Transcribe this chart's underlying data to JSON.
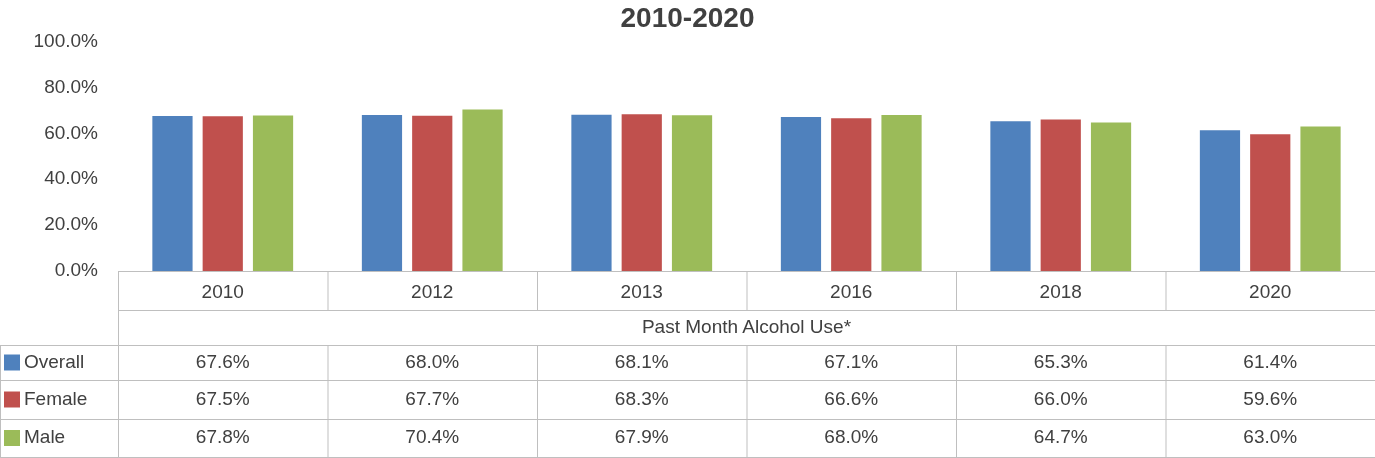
{
  "chart_data": {
    "type": "bar",
    "title": "2010-2020",
    "xlabel": "Past Month Alcohol Use*",
    "categories": [
      "2010",
      "2012",
      "2013",
      "2016",
      "2018",
      "2020"
    ],
    "series": [
      {
        "name": "Overall",
        "color": "#4f81bd",
        "values": [
          67.6,
          68.0,
          68.1,
          67.1,
          65.3,
          61.4
        ],
        "value_labels": [
          "67.6%",
          "68.0%",
          "68.1%",
          "67.1%",
          "65.3%",
          "61.4%"
        ]
      },
      {
        "name": "Female",
        "color": "#c0504d",
        "values": [
          67.5,
          67.7,
          68.3,
          66.6,
          66.0,
          59.6
        ],
        "value_labels": [
          "67.5%",
          "67.7%",
          "68.3%",
          "66.6%",
          "66.0%",
          "59.6%"
        ]
      },
      {
        "name": "Male",
        "color": "#9bbb59",
        "values": [
          67.8,
          70.4,
          67.9,
          68.0,
          64.7,
          63.0
        ],
        "value_labels": [
          "67.8%",
          "70.4%",
          "67.9%",
          "68.0%",
          "64.7%",
          "63.0%"
        ]
      }
    ],
    "ylim": [
      0,
      100
    ],
    "yticks": [
      {
        "value": 0,
        "label": "0.0%"
      },
      {
        "value": 20,
        "label": "20.0%"
      },
      {
        "value": 40,
        "label": "40.0%"
      },
      {
        "value": 60,
        "label": "60.0%"
      },
      {
        "value": 80,
        "label": "80.0%"
      },
      {
        "value": 100,
        "label": "100.0%"
      }
    ],
    "grid": false,
    "legend": "bottom left"
  }
}
